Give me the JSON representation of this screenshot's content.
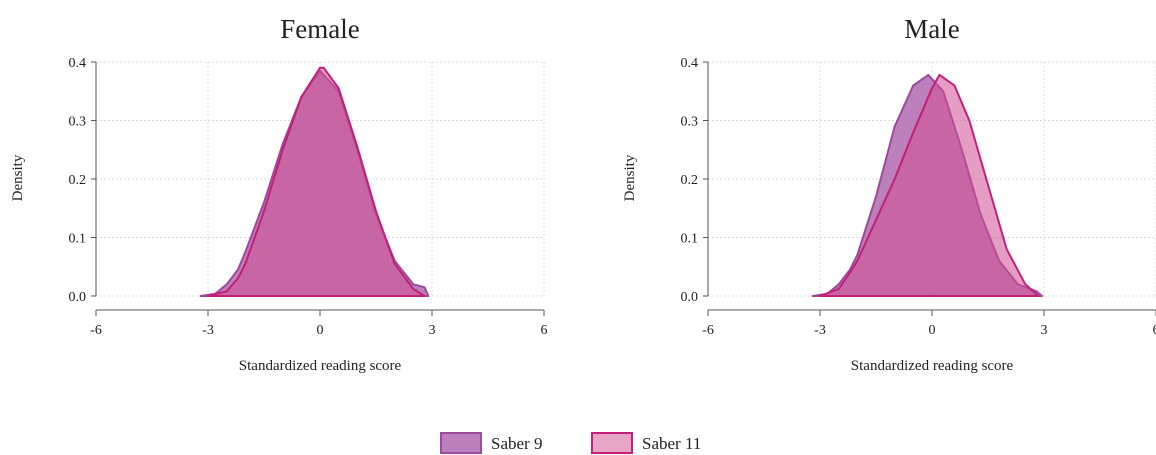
{
  "chart_data": [
    {
      "type": "area",
      "title": "Female",
      "xlabel": "Standardized reading score",
      "ylabel": "Density",
      "xlim": [
        -6,
        6
      ],
      "ylim": [
        0,
        0.4
      ],
      "x_ticks": [
        "-6",
        "-3",
        "0",
        "3",
        "6"
      ],
      "y_ticks": [
        "0.0",
        "0.1",
        "0.2",
        "0.3",
        "0.4"
      ],
      "grid": true,
      "series": [
        {
          "name": "Saber 9",
          "x": [
            -3.2,
            -2.8,
            -2.5,
            -2.2,
            -2.0,
            -1.5,
            -1.0,
            -0.5,
            0.0,
            0.5,
            1.0,
            1.5,
            2.0,
            2.5,
            2.8,
            2.9
          ],
          "y": [
            0.0,
            0.004,
            0.02,
            0.045,
            0.075,
            0.16,
            0.26,
            0.34,
            0.385,
            0.35,
            0.25,
            0.14,
            0.06,
            0.02,
            0.015,
            0.0
          ]
        },
        {
          "name": "Saber 11",
          "x": [
            -3.0,
            -2.5,
            -2.2,
            -2.0,
            -1.5,
            -1.0,
            -0.5,
            0.0,
            0.1,
            0.5,
            1.0,
            1.5,
            2.0,
            2.5,
            2.8
          ],
          "y": [
            0.0,
            0.008,
            0.03,
            0.055,
            0.145,
            0.25,
            0.34,
            0.39,
            0.39,
            0.355,
            0.255,
            0.145,
            0.055,
            0.012,
            0.0
          ]
        }
      ]
    },
    {
      "type": "area",
      "title": "Male",
      "xlabel": "Standardized reading score",
      "ylabel": "Density",
      "xlim": [
        -6,
        6
      ],
      "ylim": [
        0,
        0.4
      ],
      "x_ticks": [
        "-6",
        "-3",
        "0",
        "3",
        "6"
      ],
      "y_ticks": [
        "0.0",
        "0.1",
        "0.2",
        "0.3",
        "0.4"
      ],
      "grid": true,
      "series": [
        {
          "name": "Saber 9",
          "x": [
            -3.2,
            -2.8,
            -2.5,
            -2.2,
            -2.0,
            -1.5,
            -1.0,
            -0.5,
            -0.1,
            0.3,
            0.8,
            1.3,
            1.8,
            2.3,
            2.8,
            2.95
          ],
          "y": [
            0.0,
            0.004,
            0.02,
            0.045,
            0.07,
            0.17,
            0.29,
            0.36,
            0.378,
            0.35,
            0.25,
            0.14,
            0.06,
            0.02,
            0.008,
            0.0
          ]
        },
        {
          "name": "Saber 11",
          "x": [
            -3.0,
            -2.5,
            -2.2,
            -2.0,
            -1.5,
            -1.0,
            -0.5,
            0.0,
            0.2,
            0.6,
            1.0,
            1.5,
            2.0,
            2.5,
            2.85
          ],
          "y": [
            0.0,
            0.012,
            0.04,
            0.06,
            0.13,
            0.2,
            0.28,
            0.355,
            0.378,
            0.36,
            0.3,
            0.19,
            0.08,
            0.02,
            0.0
          ]
        }
      ]
    }
  ],
  "legend": {
    "position": "bottom-center",
    "items": [
      {
        "label": "Saber 9"
      },
      {
        "label": "Saber 11"
      }
    ]
  },
  "colors": {
    "saber9_fill": "#a655a6",
    "saber9_stroke": "#9c4a9c",
    "saber11_fill": "#d04f91",
    "saber11_stroke": "#c21f78",
    "legend_saber11_fill": "#e7a6c6"
  }
}
